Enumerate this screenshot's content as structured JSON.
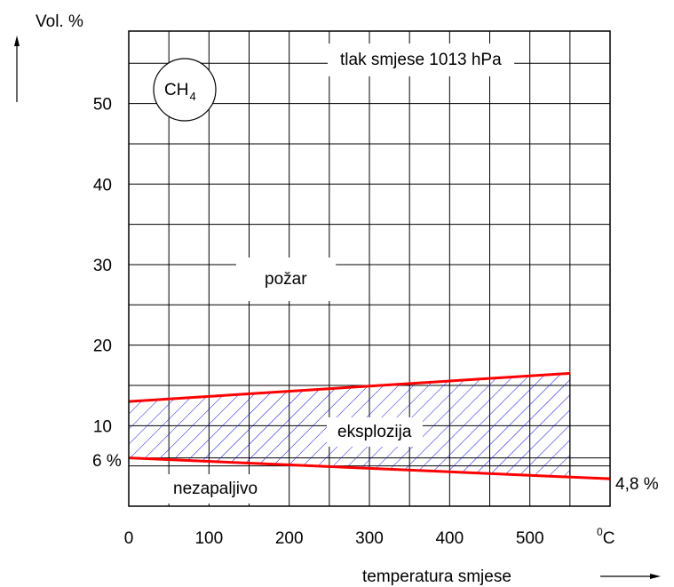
{
  "chart_data": {
    "type": "area",
    "title": "",
    "gas_label": "CH",
    "gas_subscript": "4",
    "pressure_note": "tlak smjese 1013 hPa",
    "xlabel": "temperatura smjese",
    "ylabel": "Vol. %",
    "x_unit_degree": "0",
    "x_unit": "C",
    "xlim": [
      0,
      600
    ],
    "ylim": [
      0,
      59
    ],
    "grid": true,
    "x_ticks": [
      "0",
      "100",
      "200",
      "300",
      "400",
      "500"
    ],
    "y_ticks": [
      "50",
      "40",
      "30",
      "20",
      "10"
    ],
    "y_extra_tick": "6 %",
    "series": [
      {
        "name": "",
        "x": [
          0,
          550
        ],
        "y": [
          13,
          16.5
        ]
      },
      {
        "name": "",
        "x": [
          0,
          600
        ],
        "y": [
          6,
          3.4
        ]
      }
    ],
    "end_label": "4,8 %",
    "regions": {
      "fire": "požar",
      "explosion": "eksplozija",
      "non_flammable": "nezapaljivo"
    },
    "colors": {
      "limit_line": "#ff0000",
      "hatch": "#1010e0",
      "grid": "#000000"
    }
  }
}
